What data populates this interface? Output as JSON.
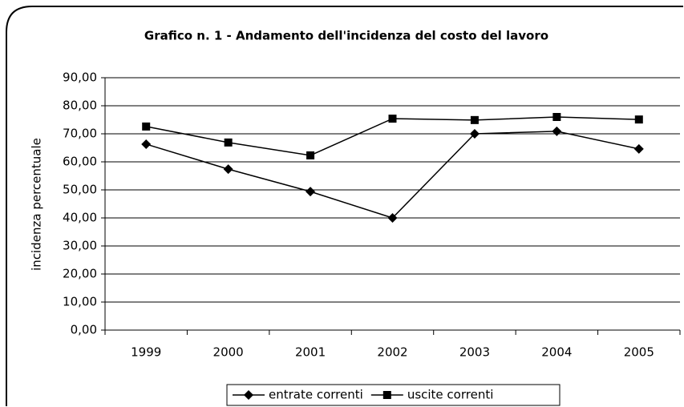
{
  "chart_data": {
    "type": "line",
    "title": "Grafico n. 1 - Andamento dell'incidenza del costo del lavoro",
    "y_label": "incidenza percentuale",
    "categories": [
      "1999",
      "2000",
      "2001",
      "2002",
      "2003",
      "2004",
      "2005"
    ],
    "series": [
      {
        "name": "entrate correnti",
        "color": "#000000",
        "marker": "diamond",
        "values": [
          66.3,
          57.4,
          49.4,
          40.0,
          70.0,
          70.9,
          64.6
        ]
      },
      {
        "name": "uscite correnti",
        "color": "#000000",
        "marker": "square",
        "values": [
          72.6,
          66.9,
          62.3,
          75.4,
          74.9,
          76.0,
          75.1
        ]
      }
    ],
    "ylim": [
      0,
      90
    ],
    "yticks": [
      {
        "value": 0,
        "label": "0,00"
      },
      {
        "value": 10,
        "label": "10,00"
      },
      {
        "value": 20,
        "label": "20,00"
      },
      {
        "value": 30,
        "label": "30,00"
      },
      {
        "value": 40,
        "label": "40,00"
      },
      {
        "value": 50,
        "label": "50,00"
      },
      {
        "value": 60,
        "label": "60,00"
      },
      {
        "value": 70,
        "label": "70,00"
      },
      {
        "value": 80,
        "label": "80,00"
      },
      {
        "value": 90,
        "label": "90,00"
      }
    ],
    "grid": true,
    "legend": "bottom"
  }
}
